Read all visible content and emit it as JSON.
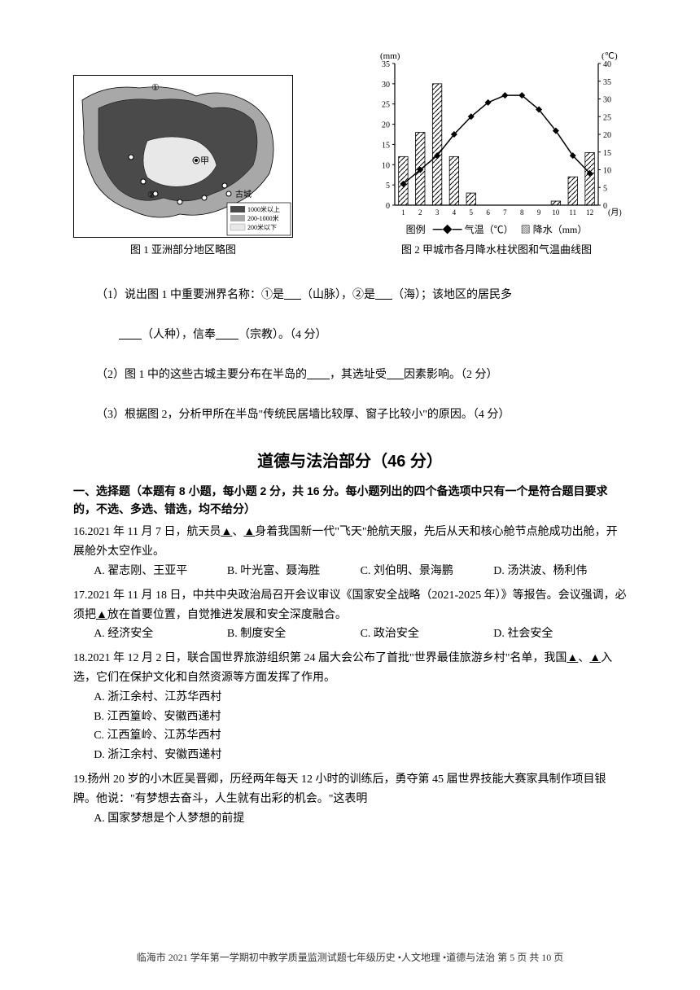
{
  "figures": {
    "map": {
      "caption": "图 1  亚洲部分地区略图",
      "markers": {
        "one": "①",
        "two": "②",
        "jia": "甲",
        "gucheng_label": "古城"
      },
      "legend_items": [
        "1000米以上",
        "200-1000米",
        "200米以下"
      ],
      "legend_colors": [
        "#4a4a4a",
        "#a8a8a8",
        "#e8e8e8"
      ],
      "border_color": "#000000"
    },
    "chart": {
      "type": "combo-bar-line",
      "caption": "图 2  甲城市各月降水柱状图和气温曲线图",
      "x_categories": [
        "1",
        "2",
        "3",
        "4",
        "5",
        "6",
        "7",
        "8",
        "9",
        "10",
        "11",
        "12"
      ],
      "x_label_suffix": "(月)",
      "left_axis": {
        "label_top": "(mm)",
        "min": 0,
        "max": 35,
        "tick_step": 5
      },
      "right_axis": {
        "label_top": "(℃)",
        "min": 0,
        "max": 40,
        "tick_step": 5
      },
      "precip_values_mm": [
        12,
        18,
        30,
        12,
        3,
        0,
        0,
        0,
        0,
        1,
        7,
        13
      ],
      "temp_values_c": [
        6,
        10,
        14,
        20,
        25,
        29,
        31,
        31,
        27,
        21,
        14,
        9
      ],
      "bar_color": "#000000",
      "bar_pattern": "diagonal-hatch",
      "line_color": "#000000",
      "marker": "diamond",
      "line_width": 1.5,
      "grid_color": "#000000",
      "background_color": "#ffffff",
      "legend": {
        "label": "图例",
        "series1": "气温（℃）",
        "series2": "降水（mm）"
      }
    }
  },
  "geo_questions": {
    "q1_a": "（1）说出图 1 中重要洲界名称：①是",
    "q1_b": "（山脉），②是",
    "q1_c": "（海）；该地区的居民多",
    "q1_d": "（人种），信奉",
    "q1_e": "（宗教）。（4 分）",
    "q2_a": "（2）图 1 中的这些古城主要分布在半岛的",
    "q2_b": "，其选址受",
    "q2_c": "因素影响。（2 分）",
    "q3": "（3）根据图 2，分析甲所在半岛\"传统民居墙比较厚、窗子比较小\"的原因。（4 分）"
  },
  "section2": {
    "title": "道德与法治部分（46 分）",
    "instruction": "一、选择题（本题有 8 小题，每小题 2 分，共 16 分。每小题列出的四个备选项中只有一个是符合题目要求的，不选、多选、错选，均不给分）"
  },
  "mcq": {
    "q16": {
      "num": "16. ",
      "stem_a": "2021 年 11 月 7 日，航天员",
      "stem_b": "、",
      "stem_c": "身着我国新一代\"飞天\"舱航天服，先后从天和核心舱节点舱成功出舱，开展舱外太空作业。",
      "optA": "A. 翟志刚、王亚平",
      "optB": "B. 叶光富、聂海胜",
      "optC": "C. 刘伯明、景海鹏",
      "optD": "D. 汤洪波、杨利伟"
    },
    "q17": {
      "num": "17. ",
      "stem_a": "2021 年 11 月 18 日，中共中央政治局召开会议审议《国家安全战略（2021-2025 年）》等报告。会议强调，必须把",
      "stem_b": "放在首要位置，自觉推进发展和安全深度融合。",
      "optA": "A. 经济安全",
      "optB": "B. 制度安全",
      "optC": "C. 政治安全",
      "optD": "D. 社会安全"
    },
    "q18": {
      "num": "18. ",
      "stem_a": "2021 年 12 月 2 日，联合国世界旅游组织第 24 届大会公布了首批\"世界最佳旅游乡村\"名单，我国",
      "stem_b": "、",
      "stem_c": "入选，它们在保护文化和自然资源等方面发挥了作用。",
      "optA": "A. 浙江余村、江苏华西村",
      "optB": "B. 江西篁岭、安徽西递村",
      "optC": "C. 江西篁岭、江苏华西村",
      "optD": "D. 浙江余村、安徽西递村"
    },
    "q19": {
      "num": "19. ",
      "stem": "扬州 20 岁的小木匠吴晋卿，历经两年每天 12 小时的训练后，勇夺第 45 届世界技能大赛家具制作项目银牌。他说：\"有梦想去奋斗，人生就有出彩的机会。\"这表明",
      "optA": "A. 国家梦想是个人梦想的前提"
    }
  },
  "footer": "临海市 2021 学年第一学期初中教学质量监测试题七年级历史 •人文地理 •道德与法治   第 5 页 共 10 页",
  "blank6": "      ",
  "blank8": "        ",
  "triangle_blank": "   ▲   "
}
